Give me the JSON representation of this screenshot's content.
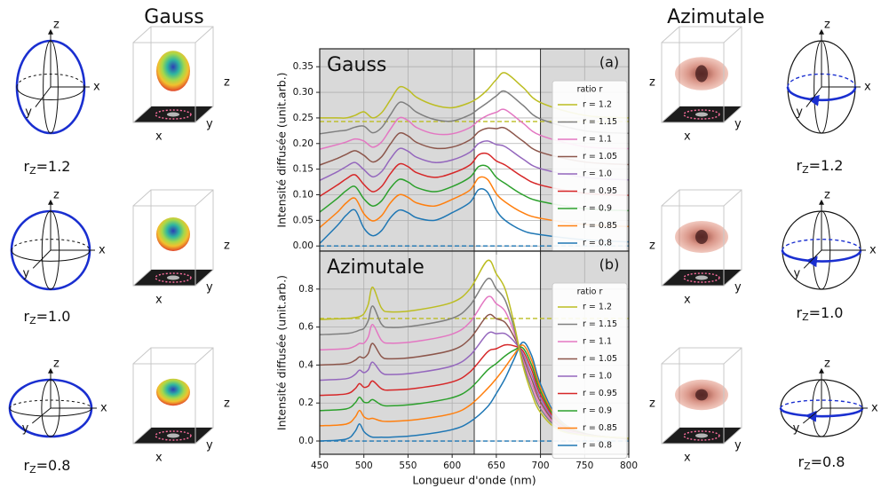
{
  "side": {
    "gauss": {
      "title": "Gauss",
      "ratios": [
        "=1.2",
        "=1.0",
        "=0.8"
      ]
    },
    "azimutale": {
      "title": "Azimutale",
      "ratios": [
        "=1.2",
        "=1.0",
        "=0.8"
      ]
    },
    "r": "r",
    "z_sub": "Z",
    "axes": {
      "x": "x",
      "y": "y",
      "z": "z"
    }
  },
  "chart_data": [
    {
      "type": "line",
      "title": "Gauss",
      "panel_label": "(a)",
      "ylabel": "Intensité diffusée (unit.arb.)",
      "x": [
        450,
        470,
        480,
        490,
        500,
        510,
        520,
        530,
        540,
        550,
        560,
        580,
        600,
        620,
        630,
        640,
        650,
        660,
        680,
        700,
        750,
        800
      ],
      "xlim": [
        450,
        800
      ],
      "xticks": [
        450,
        500,
        550,
        600,
        650,
        700,
        750,
        800
      ],
      "show_xtick_labels": false,
      "ylim": [
        -0.01,
        0.385
      ],
      "yticks": [
        {
          "value": 0,
          "label": "0.00"
        },
        0.05,
        {
          "value": 0.1,
          "label": "0.10"
        },
        0.15,
        {
          "value": 0.2,
          "label": "0.20"
        },
        0.25,
        {
          "value": 0.3,
          "label": "0.30"
        },
        0.35
      ],
      "grid": true,
      "shaded_regions": [
        [
          450,
          625
        ],
        [
          700,
          800
        ]
      ],
      "vlines": [
        625,
        700
      ],
      "hlines": [
        {
          "value": 0.243,
          "color": "#bcbd22"
        },
        {
          "value": 0,
          "color": "#1f77b4"
        }
      ],
      "legend_title": "ratio r",
      "legend": "upper right",
      "series": [
        {
          "name": "r = 1.2",
          "color": "#bcbd22",
          "values": [
            0.25,
            0.25,
            0.25,
            0.255,
            0.262,
            0.25,
            0.26,
            0.285,
            0.31,
            0.305,
            0.29,
            0.275,
            0.27,
            0.28,
            0.29,
            0.305,
            0.325,
            0.338,
            0.31,
            0.28,
            0.255,
            0.25
          ]
        },
        {
          "name": "r = 1.15",
          "color": "#7f7f7f",
          "values": [
            0.219,
            0.224,
            0.226,
            0.232,
            0.234,
            0.221,
            0.231,
            0.256,
            0.28,
            0.275,
            0.261,
            0.247,
            0.244,
            0.256,
            0.268,
            0.28,
            0.293,
            0.302,
            0.275,
            0.248,
            0.225,
            0.22
          ]
        },
        {
          "name": "r = 1.1",
          "color": "#e377c2",
          "values": [
            0.189,
            0.198,
            0.203,
            0.209,
            0.205,
            0.193,
            0.203,
            0.228,
            0.25,
            0.245,
            0.231,
            0.219,
            0.219,
            0.231,
            0.245,
            0.255,
            0.261,
            0.266,
            0.24,
            0.216,
            0.194,
            0.19
          ]
        },
        {
          "name": "r = 1.05",
          "color": "#8c564b",
          "values": [
            0.158,
            0.171,
            0.179,
            0.186,
            0.177,
            0.164,
            0.174,
            0.199,
            0.22,
            0.215,
            0.202,
            0.191,
            0.193,
            0.207,
            0.223,
            0.23,
            0.229,
            0.23,
            0.205,
            0.183,
            0.164,
            0.159
          ]
        },
        {
          "name": "r = 1.0",
          "color": "#9467bd",
          "values": [
            0.128,
            0.145,
            0.155,
            0.163,
            0.149,
            0.135,
            0.145,
            0.17,
            0.19,
            0.185,
            0.173,
            0.163,
            0.168,
            0.183,
            0.2,
            0.205,
            0.198,
            0.194,
            0.17,
            0.151,
            0.134,
            0.129
          ]
        },
        {
          "name": "r = 0.95",
          "color": "#d62728",
          "values": [
            0.097,
            0.119,
            0.131,
            0.139,
            0.12,
            0.106,
            0.116,
            0.141,
            0.16,
            0.155,
            0.143,
            0.134,
            0.142,
            0.158,
            0.178,
            0.18,
            0.166,
            0.158,
            0.135,
            0.119,
            0.103,
            0.099
          ]
        },
        {
          "name": "r = 0.9",
          "color": "#2ca02c",
          "values": [
            0.066,
            0.093,
            0.108,
            0.116,
            0.092,
            0.078,
            0.088,
            0.113,
            0.13,
            0.125,
            0.114,
            0.106,
            0.116,
            0.134,
            0.155,
            0.155,
            0.134,
            0.122,
            0.1,
            0.087,
            0.073,
            0.069
          ]
        },
        {
          "name": "r = 0.85",
          "color": "#ff7f0e",
          "values": [
            0.036,
            0.066,
            0.084,
            0.093,
            0.063,
            0.049,
            0.059,
            0.084,
            0.1,
            0.095,
            0.084,
            0.078,
            0.091,
            0.109,
            0.133,
            0.13,
            0.102,
            0.086,
            0.065,
            0.054,
            0.042,
            0.038
          ]
        },
        {
          "name": "r = 0.8",
          "color": "#1f77b4",
          "values": [
            0.005,
            0.04,
            0.06,
            0.07,
            0.035,
            0.02,
            0.03,
            0.055,
            0.07,
            0.065,
            0.055,
            0.05,
            0.065,
            0.085,
            0.11,
            0.105,
            0.07,
            0.05,
            0.03,
            0.022,
            0.012,
            0.008
          ]
        }
      ]
    },
    {
      "type": "line",
      "title": "Azimutale",
      "panel_label": "(b)",
      "ylabel": "Intensité diffusée (unit.arb.)",
      "xlabel": "Longueur d'onde (nm)",
      "x": [
        450,
        480,
        490,
        495,
        500,
        505,
        510,
        520,
        530,
        560,
        600,
        620,
        640,
        650,
        660,
        670,
        680,
        690,
        700,
        720,
        750,
        800
      ],
      "xlim": [
        450,
        800
      ],
      "xticks": [
        450,
        500,
        550,
        600,
        650,
        700,
        750,
        800
      ],
      "show_xtick_labels": true,
      "ylim": [
        -0.07,
        1.0
      ],
      "yticks": [
        {
          "value": 0,
          "label": "0.0"
        },
        0.2,
        0.4,
        0.6,
        0.8
      ],
      "grid": true,
      "shaded_regions": [
        [
          450,
          625
        ],
        [
          700,
          800
        ]
      ],
      "vlines": [
        625,
        700
      ],
      "hlines": [
        {
          "value": 0.645,
          "color": "#bcbd22"
        },
        {
          "value": 0,
          "color": "#1f77b4"
        }
      ],
      "legend_title": "ratio r",
      "legend": "upper right",
      "series": [
        {
          "name": "r = 1.2",
          "color": "#bcbd22",
          "values": [
            0.64,
            0.645,
            0.65,
            0.655,
            0.67,
            0.72,
            0.81,
            0.7,
            0.68,
            0.69,
            0.73,
            0.8,
            0.95,
            0.88,
            0.8,
            0.62,
            0.4,
            0.25,
            0.15,
            0.06,
            0.03,
            0.015
          ]
        },
        {
          "name": "r = 1.15",
          "color": "#7f7f7f",
          "values": [
            0.56,
            0.566,
            0.575,
            0.584,
            0.593,
            0.634,
            0.711,
            0.615,
            0.598,
            0.608,
            0.646,
            0.713,
            0.854,
            0.801,
            0.741,
            0.596,
            0.415,
            0.275,
            0.169,
            0.068,
            0.031,
            0.014
          ]
        },
        {
          "name": "r = 1.1",
          "color": "#e377c2",
          "values": [
            0.48,
            0.486,
            0.5,
            0.514,
            0.515,
            0.548,
            0.613,
            0.53,
            0.515,
            0.525,
            0.563,
            0.625,
            0.758,
            0.723,
            0.683,
            0.573,
            0.43,
            0.3,
            0.188,
            0.075,
            0.033,
            0.014
          ]
        },
        {
          "name": "r = 1.05",
          "color": "#8c564b",
          "values": [
            0.4,
            0.407,
            0.425,
            0.443,
            0.438,
            0.461,
            0.514,
            0.445,
            0.433,
            0.443,
            0.479,
            0.538,
            0.661,
            0.644,
            0.624,
            0.549,
            0.445,
            0.325,
            0.206,
            0.083,
            0.034,
            0.013
          ]
        },
        {
          "name": "r = 1.0",
          "color": "#9467bd",
          "values": [
            0.32,
            0.328,
            0.35,
            0.373,
            0.36,
            0.375,
            0.415,
            0.36,
            0.35,
            0.36,
            0.395,
            0.45,
            0.565,
            0.565,
            0.565,
            0.525,
            0.46,
            0.35,
            0.225,
            0.09,
            0.035,
            0.013
          ]
        },
        {
          "name": "r = 0.95",
          "color": "#d62728",
          "values": [
            0.24,
            0.248,
            0.275,
            0.302,
            0.283,
            0.289,
            0.316,
            0.275,
            0.268,
            0.278,
            0.311,
            0.363,
            0.469,
            0.486,
            0.506,
            0.501,
            0.475,
            0.375,
            0.244,
            0.098,
            0.036,
            0.012
          ]
        },
        {
          "name": "r = 0.9",
          "color": "#2ca02c",
          "values": [
            0.16,
            0.169,
            0.2,
            0.231,
            0.205,
            0.203,
            0.218,
            0.19,
            0.185,
            0.195,
            0.228,
            0.275,
            0.373,
            0.408,
            0.448,
            0.478,
            0.49,
            0.4,
            0.263,
            0.105,
            0.038,
            0.011
          ]
        },
        {
          "name": "r = 0.85",
          "color": "#ff7f0e",
          "values": [
            0.08,
            0.089,
            0.125,
            0.161,
            0.128,
            0.116,
            0.119,
            0.105,
            0.103,
            0.113,
            0.144,
            0.188,
            0.276,
            0.329,
            0.389,
            0.454,
            0.505,
            0.425,
            0.281,
            0.113,
            0.039,
            0.011
          ]
        },
        {
          "name": "r = 0.8",
          "color": "#1f77b4",
          "values": [
            0,
            0.01,
            0.05,
            0.09,
            0.05,
            0.03,
            0.02,
            0.02,
            0.02,
            0.03,
            0.06,
            0.1,
            0.18,
            0.25,
            0.33,
            0.43,
            0.52,
            0.45,
            0.3,
            0.12,
            0.04,
            0.01
          ]
        }
      ]
    }
  ]
}
